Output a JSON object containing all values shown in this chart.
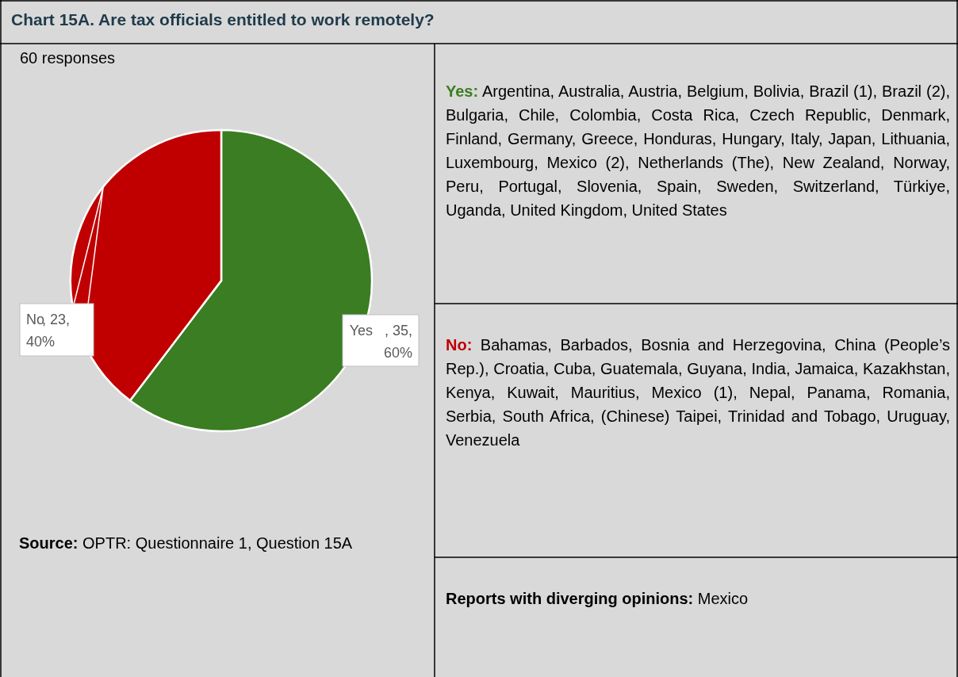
{
  "chart_data": {
    "type": "pie",
    "title": "Chart 15A. Are tax officials entitled to work remotely?",
    "subtitle": "60 responses",
    "categories": [
      "Yes",
      "No"
    ],
    "values": [
      35,
      23
    ],
    "colors": [
      "#3a7d22",
      "#c00000"
    ],
    "value_labels": [
      ", 35, 60%",
      ", 23, 40%"
    ],
    "annotations": [
      "Yes: Argentina, Australia, Austria, Belgium, Bolivia, Brazil (1), Brazil (2), Bulgaria, Chile, Colombia, Costa Rica, Czech Republic, Denmark, Finland, Germany, Greece, Honduras, Hungary, Italy, Japan, Lithuania, Luxembourg, Mexico (2), Netherlands (The), New Zealand, Norway, Peru, Portugal, Slovenia, Spain, Sweden, Switzerland, Türkiye, Uganda, United Kingdom, United States",
      "No: Bahamas, Barbados, Bosnia and Herzegovina, China (People’s Rep.), Croatia, Cuba, Guatemala, Guyana, India, Jamaica, Kazakhstan, Kenya, Kuwait, Mauritius, Mexico (1), Nepal, Panama, Romania, Serbia, South Africa, (Chinese) Taipei, Trinidad and Tobago, Uruguay, Venezuela",
      "Reports with diverging opinions: Mexico",
      "Source: OPTR: Questionnaire 1, Question 15A"
    ]
  }
}
